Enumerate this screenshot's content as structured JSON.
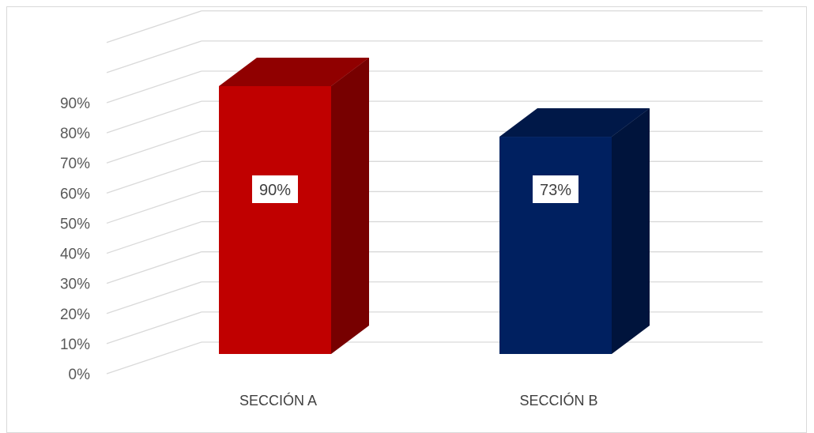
{
  "chart_data": {
    "type": "bar",
    "style": "3d-column",
    "categories": [
      "SECCIÓN A",
      "SECCIÓN B"
    ],
    "values": [
      0.9,
      0.73
    ],
    "data_labels": [
      "90%",
      "73%"
    ],
    "colors": [
      "#c00000",
      "#002060"
    ],
    "y_ticks": [
      "0%",
      "10%",
      "20%",
      "30%",
      "40%",
      "50%",
      "60%",
      "70%",
      "80%",
      "90%"
    ],
    "ylim": [
      0,
      1.0
    ],
    "grid": true,
    "legend": "none",
    "title": "",
    "xlabel": "",
    "ylabel": ""
  }
}
